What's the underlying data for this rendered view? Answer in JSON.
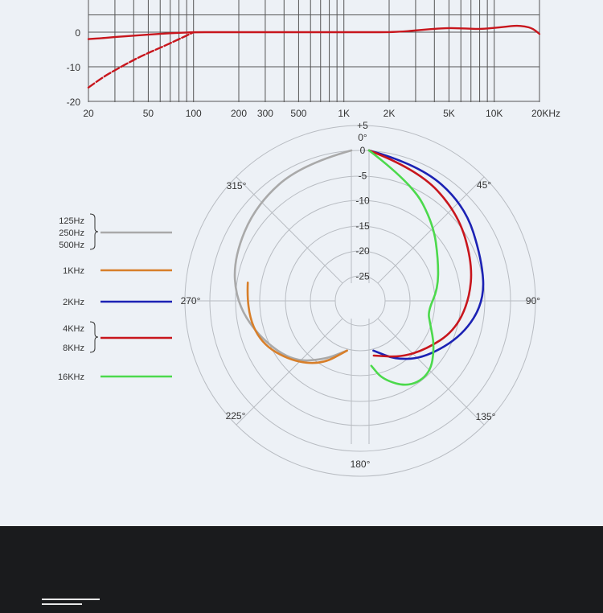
{
  "chart_data": [
    {
      "type": "line",
      "x_scale": "log",
      "xlim": [
        20,
        20000
      ],
      "ylim": [
        -20,
        5
      ],
      "grid": true,
      "x_tick_labels": [
        "20",
        "50",
        "100",
        "200",
        "300",
        "500",
        "1K",
        "2K",
        "5K",
        "10K",
        "20KHz"
      ],
      "x_tick_values": [
        20,
        50,
        100,
        200,
        300,
        500,
        1000,
        2000,
        5000,
        10000,
        20000
      ],
      "y_tick_labels": [
        "0",
        "-10",
        "-20"
      ],
      "y_tick_values": [
        0,
        -10,
        -20
      ],
      "series": [
        {
          "color": "#c8161d",
          "style": "solid",
          "x": [
            20,
            25,
            30,
            40,
            50,
            60,
            70,
            80,
            100,
            150,
            200,
            300,
            500,
            1000,
            1500,
            2000,
            2500,
            3000,
            4000,
            5000,
            6000,
            7000,
            8000,
            10000,
            12000,
            14000,
            16000,
            18000,
            20000
          ],
          "y": [
            -2.0,
            -1.7,
            -1.4,
            -1.0,
            -0.7,
            -0.5,
            -0.3,
            -0.2,
            0,
            0,
            0,
            0,
            0,
            0,
            0,
            0,
            0.2,
            0.5,
            1.0,
            1.2,
            1.1,
            1.0,
            0.9,
            1.2,
            1.6,
            1.9,
            1.7,
            1.1,
            -0.5
          ]
        },
        {
          "color": "#c8161d",
          "style": "dashed",
          "x": [
            20,
            25,
            30,
            40,
            50,
            60,
            70,
            80,
            90,
            100
          ],
          "y": [
            -16,
            -13,
            -11,
            -8,
            -6,
            -4.5,
            -3.2,
            -2,
            -1,
            0
          ]
        }
      ]
    },
    {
      "type": "polar",
      "r_tick_labels": [
        "+5",
        "0",
        "-5",
        "-10",
        "-15",
        "-20",
        "-25"
      ],
      "r_tick_values": [
        5,
        0,
        -5,
        -10,
        -15,
        -20,
        -25
      ],
      "angle_labels": [
        {
          "deg": 0,
          "text": "0°"
        },
        {
          "deg": 45,
          "text": "45°"
        },
        {
          "deg": 90,
          "text": "90°"
        },
        {
          "deg": 135,
          "text": "135°"
        },
        {
          "deg": 180,
          "text": "180°"
        },
        {
          "deg": 225,
          "text": "225°"
        },
        {
          "deg": 270,
          "text": "270°"
        },
        {
          "deg": 315,
          "text": "315°"
        }
      ],
      "legend": [
        {
          "labels": [
            "125Hz",
            "250Hz",
            "500Hz"
          ],
          "color": "#a9a9a9"
        },
        {
          "labels": [
            "1KHz"
          ],
          "color": "#d87f2a"
        },
        {
          "labels": [
            "2KHz"
          ],
          "color": "#1c22b4"
        },
        {
          "labels": [
            "4KHz",
            "8KHz"
          ],
          "color": "#c8161d"
        },
        {
          "labels": [
            "16KHz"
          ],
          "color": "#4cd94c"
        }
      ],
      "series": [
        {
          "color": "#a9a9a9",
          "side": "left",
          "theta": [
            0,
            20,
            45,
            70,
            90,
            110,
            135,
            155,
            175
          ],
          "r": [
            0,
            -1,
            -3,
            -5,
            -7,
            -10,
            -13,
            -17,
            -20
          ]
        },
        {
          "color": "#d87f2a",
          "side": "left",
          "theta": [
            80,
            95,
            115,
            135,
            155,
            175
          ],
          "r": [
            -9,
            -9,
            -10,
            -13,
            -16,
            -20
          ]
        },
        {
          "color": "#1c22b4",
          "side": "right",
          "theta": [
            0,
            20,
            45,
            70,
            90,
            110,
            135,
            155,
            175
          ],
          "r": [
            0,
            -1,
            -3,
            -6,
            -7,
            -10,
            -14,
            -17,
            -20
          ]
        },
        {
          "color": "#c8161d",
          "side": "right",
          "theta": [
            0,
            20,
            45,
            70,
            90,
            110,
            130,
            150,
            175
          ],
          "r": [
            0,
            -2,
            -5,
            -8,
            -10,
            -12,
            -15,
            -17,
            -19
          ]
        },
        {
          "color": "#4cd94c",
          "side": "right",
          "theta": [
            0,
            20,
            40,
            60,
            80,
            100,
            110,
            125,
            140,
            155,
            170,
            178
          ],
          "r": [
            0,
            -5,
            -10,
            -14,
            -16,
            -18,
            -17,
            -14,
            -11,
            -11,
            -14,
            -17
          ]
        }
      ]
    }
  ]
}
